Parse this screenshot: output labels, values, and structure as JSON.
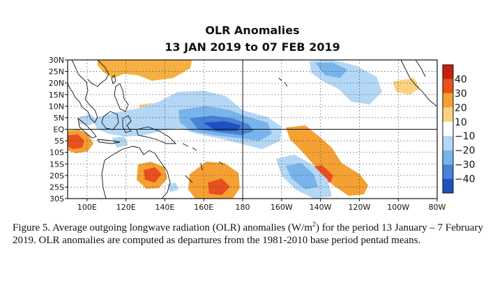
{
  "chart_data": {
    "type": "heatmap",
    "title": "OLR Anomalies",
    "subtitle": "13 JAN 2019 to 07 FEB 2019",
    "x_ticks": [
      "100E",
      "120E",
      "140E",
      "160E",
      "180",
      "160W",
      "140W",
      "120W",
      "100W",
      "80W"
    ],
    "y_ticks": [
      "30N",
      "25N",
      "20N",
      "15N",
      "10N",
      "5N",
      "EQ",
      "5S",
      "10S",
      "15S",
      "20S",
      "25S",
      "30S"
    ],
    "xlim_lon_east": [
      90,
      280
    ],
    "ylim_lat": [
      -30,
      30
    ],
    "colorbar": {
      "labels": [
        "40",
        "30",
        "20",
        "10",
        "−10",
        "−20",
        "−30",
        "−40"
      ],
      "colors": [
        "#c81e0f",
        "#e8501e",
        "#f5a032",
        "#fad282",
        "#ffffff",
        "#b4d7f5",
        "#78b4eb",
        "#4682d7",
        "#1e50c3"
      ]
    },
    "anomaly_regions": [
      {
        "lon": 90,
        "lat": -7,
        "value": 35
      },
      {
        "lon": 182,
        "lat": 0,
        "value": -40
      },
      {
        "lon": 162,
        "lat": 8,
        "value": -20
      },
      {
        "lon": 240,
        "lat": -13,
        "value": 20
      },
      {
        "lon": 218,
        "lat": -20,
        "value": -20
      },
      {
        "lon": 165,
        "lat": -22,
        "value": 20
      },
      {
        "lon": 135,
        "lat": -19,
        "value": 25
      },
      {
        "lon": 212,
        "lat": 18,
        "value": -15
      },
      {
        "lon": 145,
        "lat": 26,
        "value": 15
      }
    ]
  },
  "caption": {
    "text_before_unit": "Figure 5. Average outgoing longwave radiation (OLR) anomalies (W/m",
    "unit_sup": "2",
    "text_after_unit": ") for the period 13 January  – 7 February 2019. OLR anomalies are computed as departures from the 1981-2010 base period pentad means."
  }
}
